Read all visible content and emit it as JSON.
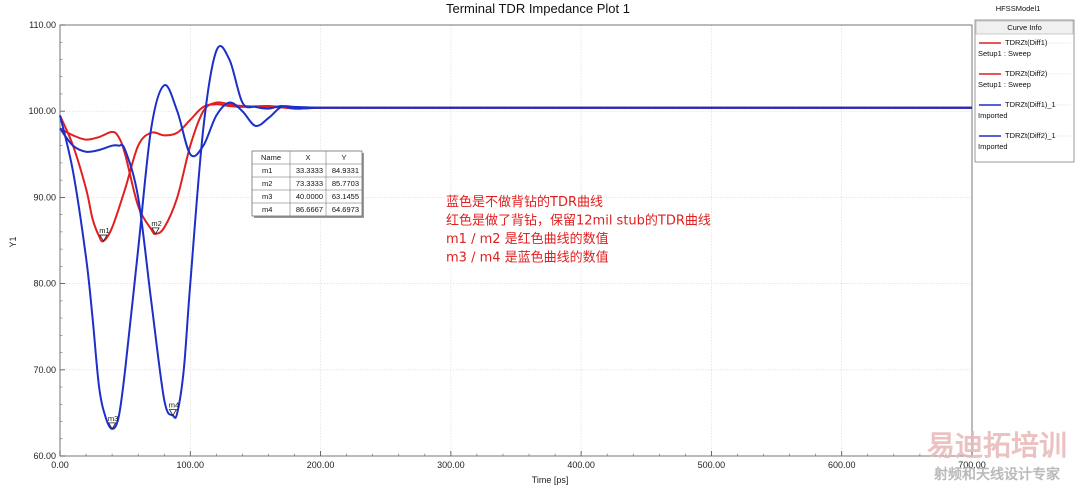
{
  "chart_data": {
    "type": "line",
    "title": "Terminal TDR Impedance Plot 1",
    "xlabel": "Time [ps]",
    "ylabel": "Y1",
    "xlim": [
      0,
      700
    ],
    "ylim": [
      60,
      110
    ],
    "x_ticks": [
      "0.00",
      "100.00",
      "200.00",
      "300.00",
      "400.00",
      "500.00",
      "600.00",
      "700.00"
    ],
    "y_ticks": [
      "60.00",
      "70.00",
      "80.00",
      "90.00",
      "100.00",
      "110.00"
    ],
    "grid": true,
    "legend_placement": "top-right",
    "series": [
      {
        "name": "TDRZt(Diff1)",
        "sub": "Setup1 : Sweep",
        "color": "#e02020",
        "x": [
          0,
          10,
          20,
          25,
          30,
          33.3,
          40,
          50,
          60,
          70,
          80,
          90,
          100,
          110,
          120,
          130,
          140,
          160,
          180,
          200,
          250,
          300,
          400,
          500,
          600,
          700
        ],
        "y": [
          99.5,
          96,
          91,
          87.5,
          85.5,
          84.93,
          86.5,
          91,
          96,
          97.5,
          97.2,
          97.5,
          99,
          100.5,
          100.8,
          100.6,
          100.5,
          100.6,
          100.3,
          100.4,
          100.4,
          100.4,
          100.4,
          100.4,
          100.4,
          100.4
        ]
      },
      {
        "name": "TDRZt(Diff2)",
        "sub": "Setup1 : Sweep",
        "color": "#e02020",
        "x": [
          0,
          10,
          20,
          30,
          40,
          45,
          50,
          60,
          70,
          73.3,
          80,
          90,
          100,
          110,
          120,
          130,
          140,
          160,
          180,
          200,
          250,
          300,
          400,
          500,
          600,
          700
        ],
        "y": [
          98,
          97.2,
          96.7,
          97,
          97.6,
          97,
          95,
          89,
          86.3,
          85.77,
          86.5,
          90,
          96,
          100,
          101,
          100.8,
          100.6,
          100.5,
          100.4,
          100.4,
          100.4,
          100.4,
          100.4,
          100.4,
          100.4,
          100.4
        ]
      },
      {
        "name": "TDRZt(Diff1)_1",
        "sub": "Imported",
        "color": "#1c2fc8",
        "x": [
          0,
          10,
          20,
          25,
          30,
          35,
          40,
          45,
          50,
          60,
          70,
          80,
          90,
          100,
          110,
          120,
          130,
          140,
          150,
          160,
          170,
          180,
          200,
          250,
          300,
          400,
          500,
          600,
          700
        ],
        "y": [
          99.5,
          93,
          83,
          76,
          68,
          64.5,
          63.15,
          64.5,
          70,
          84,
          98,
          103,
          100,
          95,
          96,
          99.5,
          101,
          100,
          98.3,
          99.2,
          100.5,
          100.5,
          100.4,
          100.4,
          100.4,
          100.4,
          100.4,
          100.4,
          100.4
        ]
      },
      {
        "name": "TDRZt(Diff2)_1",
        "sub": "Imported",
        "color": "#1c2fc8",
        "x": [
          0,
          10,
          20,
          30,
          40,
          45,
          50,
          60,
          70,
          80,
          86.67,
          90,
          95,
          100,
          110,
          120,
          130,
          140,
          150,
          160,
          170,
          180,
          200,
          250,
          300,
          400,
          500,
          600,
          700
        ],
        "y": [
          98,
          96,
          95.3,
          95.5,
          96,
          96,
          95.5,
          90,
          78,
          66.5,
          64.7,
          65,
          70,
          80,
          98,
          107,
          106,
          101,
          100.5,
          100.3,
          100.6,
          100.3,
          100.4,
          100.4,
          100.4,
          100.4,
          100.4,
          100.4,
          100.4
        ]
      }
    ],
    "markers": [
      {
        "name": "m1",
        "x": 33.3333,
        "y": 84.9331,
        "series": 0
      },
      {
        "name": "m2",
        "x": 73.3333,
        "y": 85.7703,
        "series": 1
      },
      {
        "name": "m3",
        "x": 40.0,
        "y": 63.1455,
        "series": 2
      },
      {
        "name": "m4",
        "x": 86.6667,
        "y": 64.6973,
        "series": 3
      }
    ],
    "marker_table": {
      "headers": [
        "Name",
        "X",
        "Y"
      ],
      "rows": [
        [
          "m1",
          "33.3333",
          "84.9331"
        ],
        [
          "m2",
          "73.3333",
          "85.7703"
        ],
        [
          "m3",
          "40.0000",
          "63.1455"
        ],
        [
          "m4",
          "86.6667",
          "64.6973"
        ]
      ]
    },
    "annotations": [
      "蓝色是不做背钻的TDR曲线",
      "红色是做了背钻，保留12mil stub的TDR曲线",
      "m1 / m2 是红色曲线的数值",
      "m3 / m4 是蓝色曲线的数值"
    ],
    "model_label": "HFSSModel1",
    "legend_title": "Curve Info",
    "watermark": {
      "brand": "易迪拓培训",
      "tagline": "射频和天线设计专家"
    }
  }
}
